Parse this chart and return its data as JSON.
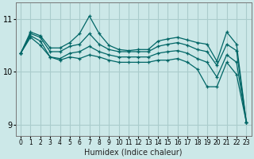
{
  "xlabel": "Humidex (Indice chaleur)",
  "bg_color": "#cce8e8",
  "grid_color": "#aacccc",
  "line_color": "#006666",
  "xlim": [
    -0.5,
    23.5
  ],
  "ylim": [
    8.8,
    11.3
  ],
  "yticks": [
    9,
    10,
    11
  ],
  "xticks": [
    0,
    1,
    2,
    3,
    4,
    5,
    6,
    7,
    8,
    9,
    10,
    11,
    12,
    13,
    14,
    15,
    16,
    17,
    18,
    19,
    20,
    21,
    22,
    23
  ],
  "series": [
    {
      "x": [
        0,
        1,
        2,
        3,
        4,
        5,
        6,
        7,
        8,
        9,
        10,
        11,
        12,
        13,
        14,
        15,
        16,
        17,
        18,
        19,
        20,
        21,
        22,
        23
      ],
      "y": [
        10.35,
        10.75,
        10.68,
        10.45,
        10.45,
        10.55,
        10.72,
        11.05,
        10.72,
        10.5,
        10.42,
        10.4,
        10.42,
        10.42,
        10.58,
        10.62,
        10.65,
        10.6,
        10.55,
        10.52,
        10.2,
        10.75,
        10.52,
        9.05
      ]
    },
    {
      "x": [
        0,
        1,
        2,
        3,
        4,
        5,
        6,
        7,
        8,
        9,
        10,
        11,
        12,
        13,
        14,
        15,
        16,
        17,
        18,
        19,
        20,
        21,
        22,
        23
      ],
      "y": [
        10.35,
        10.72,
        10.65,
        10.38,
        10.38,
        10.48,
        10.52,
        10.72,
        10.52,
        10.42,
        10.38,
        10.38,
        10.38,
        10.38,
        10.48,
        10.52,
        10.55,
        10.5,
        10.42,
        10.38,
        10.12,
        10.52,
        10.4,
        9.05
      ]
    },
    {
      "x": [
        0,
        1,
        2,
        3,
        4,
        5,
        6,
        7,
        8,
        9,
        10,
        11,
        12,
        13,
        14,
        15,
        16,
        17,
        18,
        19,
        20,
        21,
        22,
        23
      ],
      "y": [
        10.35,
        10.68,
        10.58,
        10.28,
        10.25,
        10.35,
        10.38,
        10.48,
        10.38,
        10.32,
        10.28,
        10.28,
        10.28,
        10.28,
        10.35,
        10.38,
        10.4,
        10.35,
        10.25,
        10.18,
        9.9,
        10.32,
        10.18,
        9.05
      ]
    },
    {
      "x": [
        0,
        1,
        2,
        3,
        4,
        5,
        6,
        7,
        8,
        9,
        10,
        11,
        12,
        13,
        14,
        15,
        16,
        17,
        18,
        19,
        20,
        21,
        22,
        23
      ],
      "y": [
        10.35,
        10.65,
        10.5,
        10.28,
        10.22,
        10.28,
        10.25,
        10.32,
        10.28,
        10.22,
        10.18,
        10.18,
        10.18,
        10.18,
        10.22,
        10.22,
        10.25,
        10.18,
        10.05,
        9.72,
        9.72,
        10.18,
        9.95,
        9.05
      ]
    }
  ]
}
